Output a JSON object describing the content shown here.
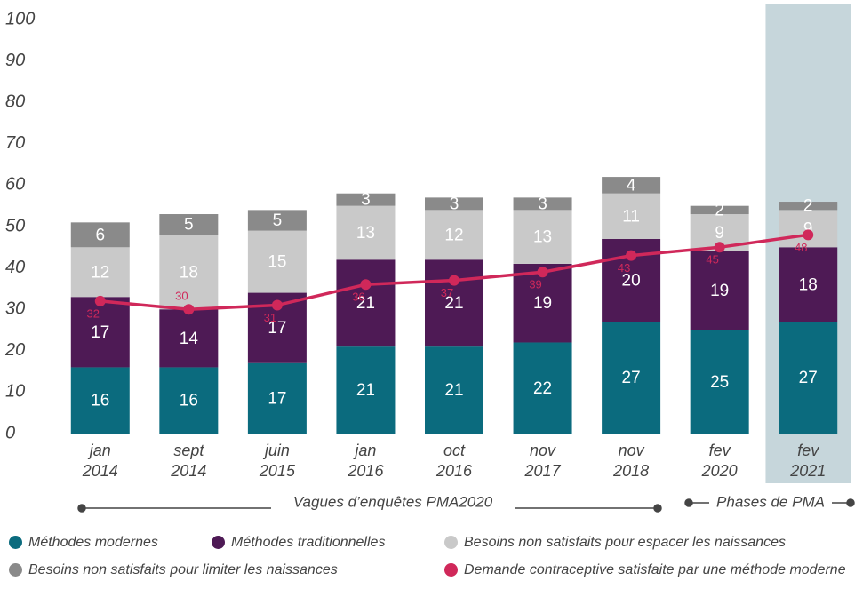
{
  "chart_data": {
    "type": "bar",
    "stacked": true,
    "categories": [
      [
        "jan",
        "2014"
      ],
      [
        "sept",
        "2014"
      ],
      [
        "juin",
        "2015"
      ],
      [
        "jan",
        "2016"
      ],
      [
        "oct",
        "2016"
      ],
      [
        "nov",
        "2017"
      ],
      [
        "nov",
        "2018"
      ],
      [
        "fev",
        "2020"
      ],
      [
        "fev",
        "2021"
      ]
    ],
    "highlight_category": 8,
    "highlight_color": "#c6d6db",
    "ylim": [
      0,
      100
    ],
    "yticks": [
      0,
      10,
      20,
      30,
      40,
      50,
      60,
      70,
      80,
      90,
      100
    ],
    "grid": false,
    "series": [
      {
        "name": "Méthodes modernes",
        "color": "#0b6b7e",
        "values": [
          16,
          16,
          17,
          21,
          21,
          22,
          27,
          25,
          27
        ]
      },
      {
        "name": "Méthodes traditionnelles",
        "color": "#4e1a55",
        "values": [
          17,
          14,
          17,
          21,
          21,
          19,
          20,
          19,
          18
        ]
      },
      {
        "name": "Besoins non satisfaits pour espacer les naissances",
        "color": "#c9c9c9",
        "values": [
          12,
          18,
          15,
          13,
          12,
          13,
          11,
          9,
          9
        ]
      },
      {
        "name": "Besoins non satisfaits pour limiter les naissances",
        "color": "#8a8a8a",
        "values": [
          6,
          5,
          5,
          3,
          3,
          3,
          4,
          2,
          2
        ]
      },
      {
        "name": "Demande contraceptive satisfaite par une méthode moderne",
        "type": "line",
        "color": "#d0285a",
        "values": [
          32,
          30,
          31,
          36,
          37,
          39,
          43,
          45,
          48
        ]
      }
    ],
    "annotations": [
      "Vagues d’enquêtes PMA2020",
      "Phases de PMA"
    ]
  }
}
